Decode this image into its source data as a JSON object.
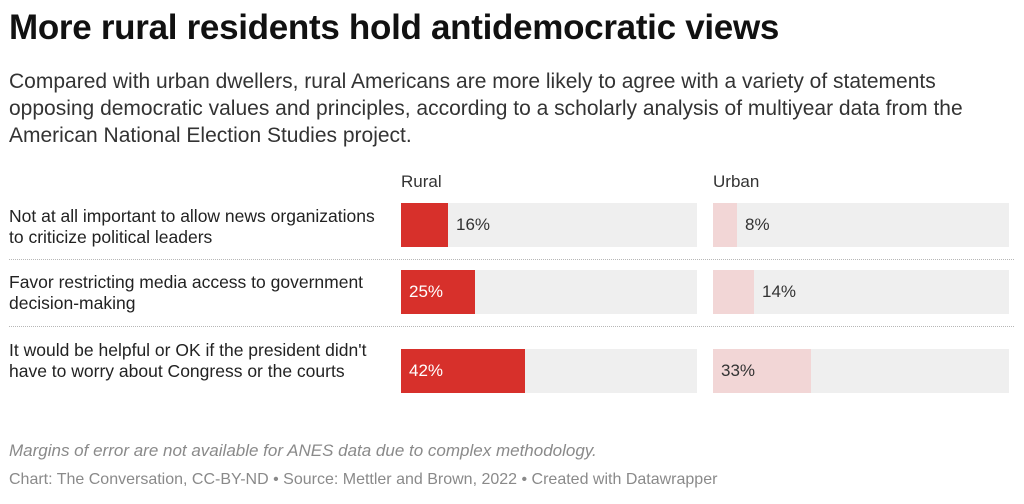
{
  "title": "More rural residents hold antidemocratic views",
  "subtitle": "Compared with urban dwellers, rural Americans are more likely to agree with a variety of statements opposing democratic values and principles, according to a scholarly analysis of multiyear data from the American National Election Studies project.",
  "note": "Margins of error are not available for ANES data due to complex methodology.",
  "footer": "Chart: The Conversation, CC-BY-ND • Source: Mettler and Brown, 2022 • Created with Datawrapper",
  "colors": {
    "rural": "#d7302b",
    "urban": "#f2d6d6",
    "track": "#efefef"
  },
  "chart_data": {
    "type": "bar",
    "orientation": "horizontal",
    "title": "More rural residents hold antidemocratic views",
    "categories": [
      "Not at all important to allow news organizations to criticize political leaders",
      "Favor restricting media access to government decision-making",
      "It would be helpful or OK if the president didn't have to worry about Congress or the courts"
    ],
    "series": [
      {
        "name": "Rural",
        "values": [
          16,
          25,
          42
        ],
        "labels": [
          "16%",
          "25%",
          "42%"
        ]
      },
      {
        "name": "Urban",
        "values": [
          8,
          14,
          33
        ],
        "labels": [
          "8%",
          "14%",
          "33%"
        ]
      }
    ],
    "xlim": [
      0,
      100
    ],
    "unit": "%",
    "grid": false,
    "legend": "column headers"
  }
}
